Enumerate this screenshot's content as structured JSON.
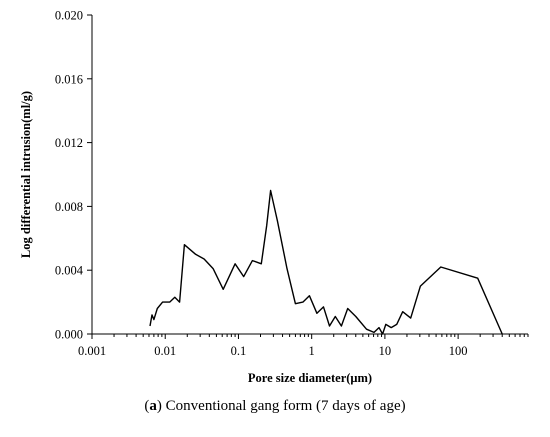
{
  "chart_data": {
    "type": "line",
    "xlabel": "Pore size diameter(μm)",
    "ylabel": "Log differential intrusion(ml/g)",
    "x_scale": "log",
    "xlim": [
      0.001,
      900
    ],
    "ylim": [
      0,
      0.02
    ],
    "x_ticks": [
      0.001,
      0.01,
      0.1,
      1,
      10,
      100
    ],
    "x_tick_labels": [
      "0.001",
      "0.01",
      "0.1",
      "1",
      "10",
      "100"
    ],
    "y_ticks": [
      0,
      0.004,
      0.008,
      0.012,
      0.016,
      0.02
    ],
    "y_tick_labels": [
      "0.000",
      "0.004",
      "0.008",
      "0.012",
      "0.016",
      "0.020"
    ],
    "grid": false,
    "legend": "none",
    "color": "#000000",
    "x": [
      0.0062,
      0.0066,
      0.007,
      0.0078,
      0.0092,
      0.0115,
      0.0135,
      0.0157,
      0.0183,
      0.026,
      0.034,
      0.045,
      0.062,
      0.09,
      0.118,
      0.155,
      0.205,
      0.243,
      0.275,
      0.34,
      0.46,
      0.6,
      0.76,
      0.93,
      1.18,
      1.45,
      1.75,
      2.1,
      2.55,
      3.1,
      4.0,
      5.6,
      7.1,
      8.3,
      9.3,
      10.3,
      12.2,
      14.5,
      17.5,
      22.5,
      30.5,
      58,
      185,
      400
    ],
    "y": [
      0.0005,
      0.0012,
      0.0009,
      0.0016,
      0.002,
      0.002,
      0.0023,
      0.002,
      0.0056,
      0.005,
      0.0047,
      0.0041,
      0.0028,
      0.0044,
      0.0036,
      0.0046,
      0.0044,
      0.0068,
      0.009,
      0.0071,
      0.0041,
      0.0019,
      0.002,
      0.0024,
      0.0013,
      0.0017,
      0.0005,
      0.0011,
      0.0005,
      0.0016,
      0.0011,
      0.0003,
      0.0001,
      0.0004,
      0.0,
      0.0006,
      0.0004,
      0.0006,
      0.0014,
      0.001,
      0.003,
      0.0042,
      0.0035,
      0.0
    ]
  },
  "caption": {
    "label": "a",
    "text": "Conventional gang form (7 days of age)"
  }
}
